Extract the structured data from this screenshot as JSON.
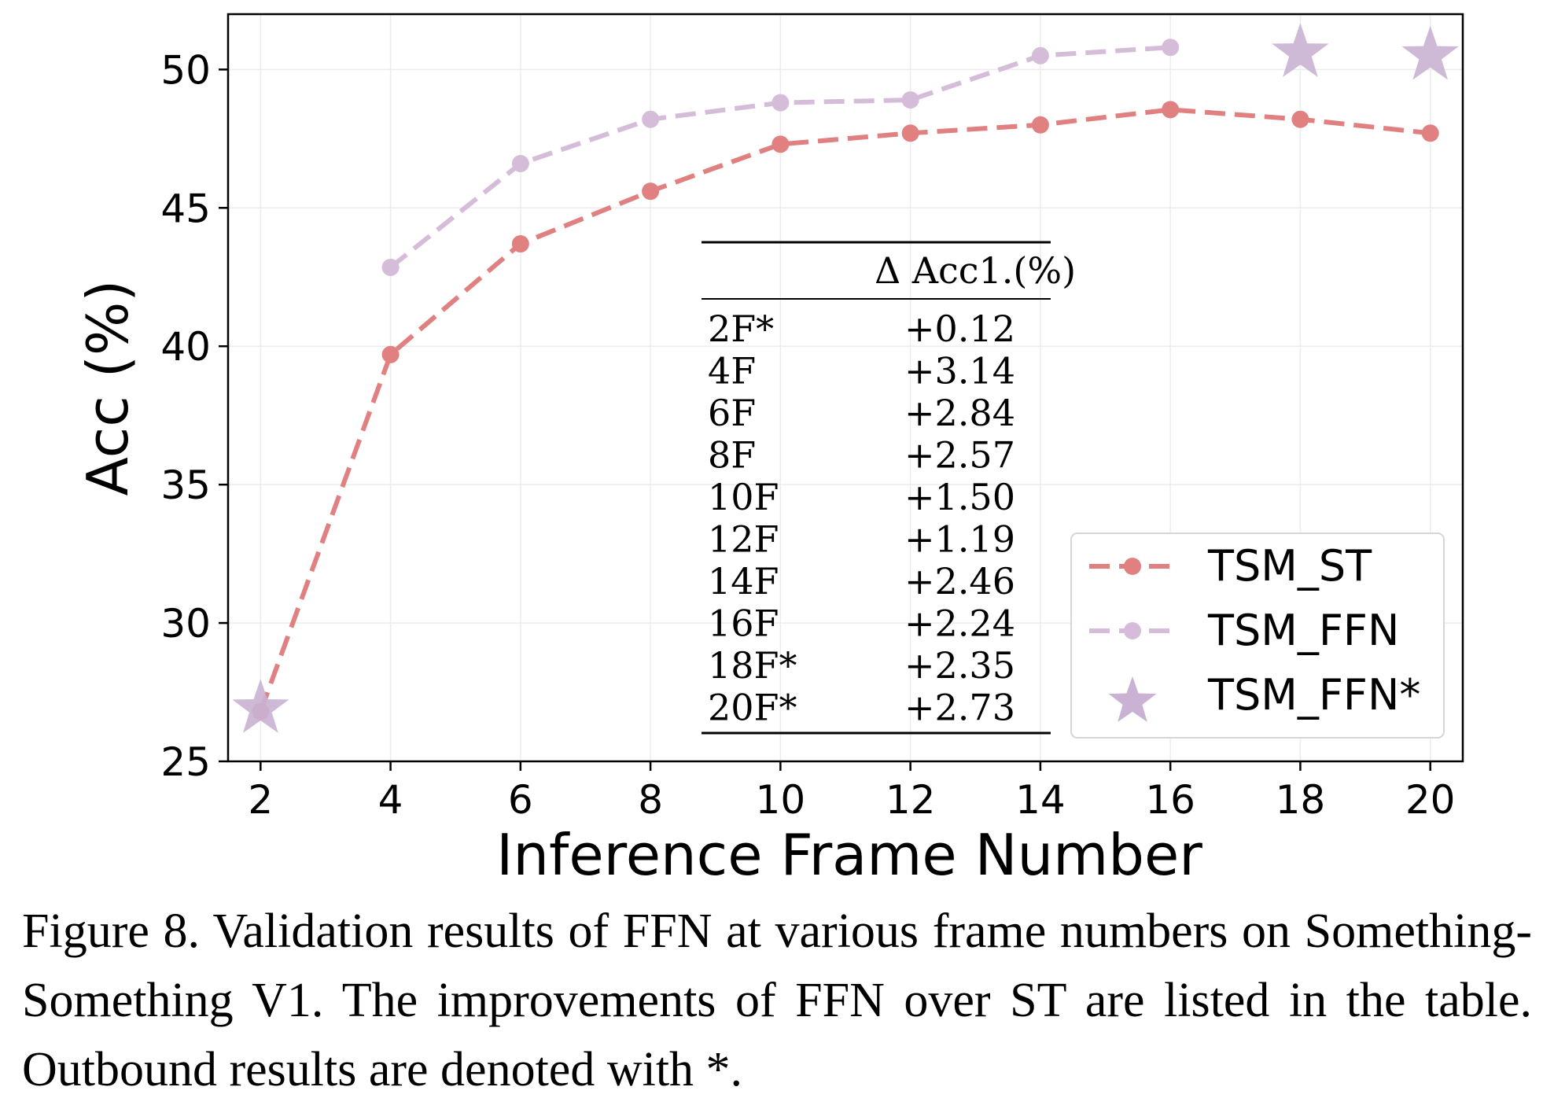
{
  "chart_data": {
    "type": "line",
    "xlabel": "Inference Frame Number",
    "ylabel": "Acc (%)",
    "xlim": [
      1.5,
      20.5
    ],
    "ylim": [
      25,
      52
    ],
    "xticks": [
      2,
      4,
      6,
      8,
      10,
      12,
      14,
      16,
      18,
      20
    ],
    "yticks": [
      25,
      30,
      35,
      40,
      45,
      50
    ],
    "grid": true,
    "legend_position": "bottom-right",
    "series": [
      {
        "name": "TSM_ST",
        "marker": "circle",
        "line": "dashed",
        "color": "#e08080",
        "x": [
          2,
          4,
          6,
          8,
          10,
          12,
          14,
          16,
          18,
          20
        ],
        "values": [
          26.8,
          39.7,
          43.7,
          45.6,
          47.3,
          47.7,
          48.0,
          48.55,
          48.2,
          47.7
        ]
      },
      {
        "name": "TSM_FFN",
        "marker": "circle",
        "line": "dashed",
        "color": "#d5bcd9",
        "x": [
          4,
          6,
          8,
          10,
          12,
          14,
          16
        ],
        "values": [
          42.85,
          46.6,
          48.2,
          48.8,
          48.9,
          50.5,
          50.8
        ]
      },
      {
        "name": "TSM_FFN*",
        "marker": "star",
        "line": "none",
        "color": "#c9b2d3",
        "x": [
          2,
          18,
          20
        ],
        "values": [
          26.9,
          50.6,
          50.5
        ]
      }
    ],
    "inset_table": {
      "header": "Δ Acc1.(%)",
      "rows": [
        {
          "label": "2F*",
          "value": "+0.12"
        },
        {
          "label": "4F",
          "value": "+3.14"
        },
        {
          "label": "6F",
          "value": "+2.84"
        },
        {
          "label": "8F",
          "value": "+2.57"
        },
        {
          "label": "10F",
          "value": "+1.50"
        },
        {
          "label": "12F",
          "value": "+1.19"
        },
        {
          "label": "14F",
          "value": "+2.46"
        },
        {
          "label": "16F",
          "value": "+2.24"
        },
        {
          "label": "18F*",
          "value": "+2.35"
        },
        {
          "label": "20F*",
          "value": "+2.73"
        }
      ]
    }
  },
  "caption": "Figure 8.  Validation results of FFN at various frame numbers on Something-Something V1. The improvements of FFN over ST are listed in the table. Outbound results are denoted with *."
}
